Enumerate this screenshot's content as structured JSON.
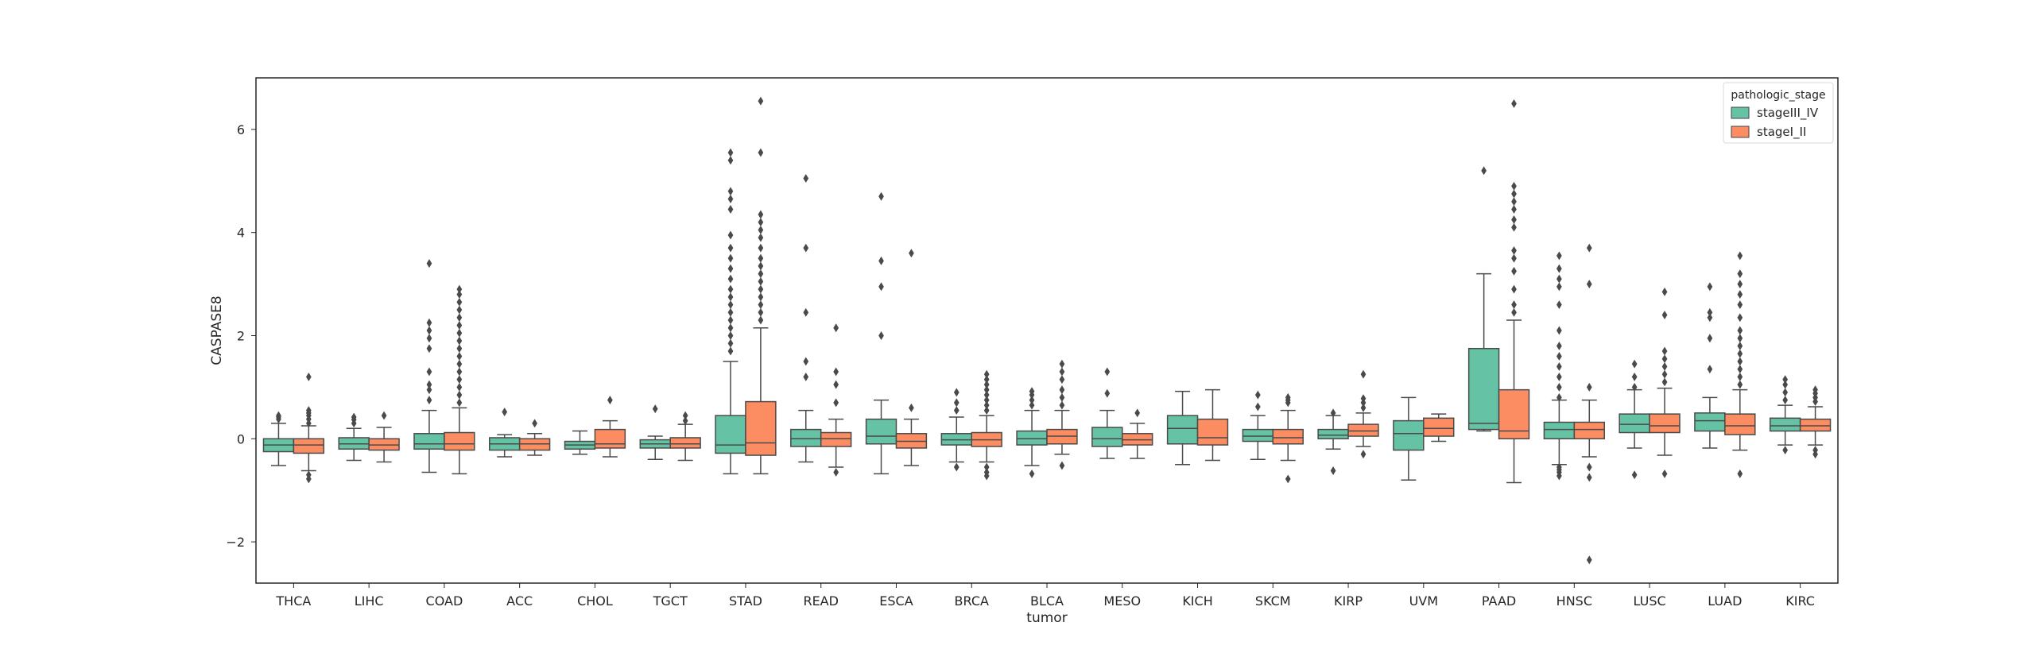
{
  "chart_data": {
    "type": "boxplot",
    "xlabel": "tumor",
    "ylabel": "CASPASE8",
    "ylim": [
      -2.8,
      7.0
    ],
    "yticks": [
      -2,
      0,
      2,
      4,
      6
    ],
    "grid": false,
    "legend": {
      "title": "pathologic_stage",
      "placement": "top-right"
    },
    "categories": [
      "THCA",
      "LIHC",
      "COAD",
      "ACC",
      "CHOL",
      "TGCT",
      "STAD",
      "READ",
      "ESCA",
      "BRCA",
      "BLCA",
      "MESO",
      "KICH",
      "SKCM",
      "KIRP",
      "UVM",
      "PAAD",
      "HNSC",
      "LUSC",
      "LUAD",
      "KIRC"
    ],
    "series": [
      {
        "name": "stageIII_IV",
        "color": "#66c2a5",
        "boxes": [
          {
            "q1": -0.25,
            "median": -0.12,
            "q3": 0.0,
            "wlo": -0.52,
            "whi": 0.3,
            "outliers": [
              0.38,
              0.42,
              0.45
            ]
          },
          {
            "q1": -0.2,
            "median": -0.1,
            "q3": 0.02,
            "wlo": -0.42,
            "whi": 0.2,
            "outliers": [
              0.3,
              0.37,
              0.42
            ]
          },
          {
            "q1": -0.2,
            "median": -0.1,
            "q3": 0.1,
            "wlo": -0.65,
            "whi": 0.55,
            "outliers": [
              0.75,
              0.95,
              1.05,
              1.3,
              1.75,
              1.95,
              2.1,
              2.25,
              3.4
            ]
          },
          {
            "q1": -0.22,
            "median": -0.1,
            "q3": 0.02,
            "wlo": -0.35,
            "whi": 0.08,
            "outliers": [
              0.52
            ]
          },
          {
            "q1": -0.2,
            "median": -0.12,
            "q3": -0.05,
            "wlo": -0.3,
            "whi": 0.15,
            "outliers": []
          },
          {
            "q1": -0.18,
            "median": -0.1,
            "q3": -0.02,
            "wlo": -0.4,
            "whi": 0.05,
            "outliers": [
              0.58
            ]
          },
          {
            "q1": -0.28,
            "median": -0.12,
            "q3": 0.45,
            "wlo": -0.68,
            "whi": 1.5,
            "outliers": [
              1.7,
              1.85,
              2.0,
              2.15,
              2.3,
              2.45,
              2.6,
              2.75,
              2.9,
              3.1,
              3.3,
              3.5,
              3.7,
              3.95,
              4.45,
              4.65,
              4.8,
              5.4,
              5.55
            ]
          },
          {
            "q1": -0.15,
            "median": 0.0,
            "q3": 0.18,
            "wlo": -0.45,
            "whi": 0.55,
            "outliers": [
              1.2,
              1.5,
              2.45,
              3.7,
              5.05
            ]
          },
          {
            "q1": -0.1,
            "median": 0.05,
            "q3": 0.38,
            "wlo": -0.68,
            "whi": 0.75,
            "outliers": [
              2.0,
              2.95,
              3.45,
              4.7
            ]
          },
          {
            "q1": -0.12,
            "median": -0.02,
            "q3": 0.1,
            "wlo": -0.45,
            "whi": 0.42,
            "outliers": [
              -0.55,
              0.55,
              0.7,
              0.9
            ]
          },
          {
            "q1": -0.12,
            "median": 0.0,
            "q3": 0.15,
            "wlo": -0.52,
            "whi": 0.55,
            "outliers": [
              -0.68,
              0.65,
              0.75,
              0.85,
              0.92
            ]
          },
          {
            "q1": -0.15,
            "median": 0.0,
            "q3": 0.22,
            "wlo": -0.38,
            "whi": 0.55,
            "outliers": [
              0.88,
              1.3
            ]
          },
          {
            "q1": -0.1,
            "median": 0.2,
            "q3": 0.45,
            "wlo": -0.5,
            "whi": 0.92,
            "outliers": []
          },
          {
            "q1": -0.05,
            "median": 0.05,
            "q3": 0.18,
            "wlo": -0.4,
            "whi": 0.45,
            "outliers": [
              0.62,
              0.85
            ]
          },
          {
            "q1": 0.0,
            "median": 0.07,
            "q3": 0.18,
            "wlo": -0.2,
            "whi": 0.45,
            "outliers": [
              -0.62,
              0.5
            ]
          },
          {
            "q1": -0.22,
            "median": 0.1,
            "q3": 0.35,
            "wlo": -0.8,
            "whi": 0.8,
            "outliers": []
          },
          {
            "q1": 0.18,
            "median": 0.3,
            "q3": 1.75,
            "wlo": 0.15,
            "whi": 3.2,
            "outliers": [
              5.2
            ]
          },
          {
            "q1": 0.0,
            "median": 0.18,
            "q3": 0.32,
            "wlo": -0.5,
            "whi": 0.75,
            "outliers": [
              -0.55,
              -0.6,
              -0.65,
              -0.72,
              0.8,
              1.0,
              1.2,
              1.4,
              1.6,
              1.8,
              2.1,
              2.6,
              2.95,
              3.1,
              3.3,
              3.55
            ]
          },
          {
            "q1": 0.12,
            "median": 0.28,
            "q3": 0.48,
            "wlo": -0.18,
            "whi": 0.95,
            "outliers": [
              -0.7,
              1.0,
              1.2,
              1.45
            ]
          },
          {
            "q1": 0.15,
            "median": 0.35,
            "q3": 0.5,
            "wlo": -0.18,
            "whi": 0.8,
            "outliers": [
              1.35,
              1.95,
              2.35,
              2.45,
              2.95
            ]
          },
          {
            "q1": 0.15,
            "median": 0.25,
            "q3": 0.4,
            "wlo": -0.12,
            "whi": 0.65,
            "outliers": [
              -0.22,
              0.75,
              0.9,
              1.05,
              1.15
            ]
          }
        ]
      },
      {
        "name": "stageI_II",
        "color": "#fc8d62",
        "boxes": [
          {
            "q1": -0.28,
            "median": -0.12,
            "q3": 0.0,
            "wlo": -0.62,
            "whi": 0.25,
            "outliers": [
              -0.7,
              -0.78,
              0.3,
              0.38,
              0.45,
              0.5,
              0.55,
              1.2
            ]
          },
          {
            "q1": -0.22,
            "median": -0.12,
            "q3": 0.0,
            "wlo": -0.45,
            "whi": 0.22,
            "outliers": [
              0.45
            ]
          },
          {
            "q1": -0.22,
            "median": -0.1,
            "q3": 0.12,
            "wlo": -0.68,
            "whi": 0.6,
            "outliers": [
              0.7,
              0.85,
              1.0,
              1.15,
              1.3,
              1.45,
              1.6,
              1.75,
              1.9,
              2.05,
              2.2,
              2.35,
              2.5,
              2.65,
              2.8,
              2.9
            ]
          },
          {
            "q1": -0.22,
            "median": -0.1,
            "q3": 0.0,
            "wlo": -0.32,
            "whi": 0.1,
            "outliers": [
              0.3
            ]
          },
          {
            "q1": -0.18,
            "median": -0.1,
            "q3": 0.18,
            "wlo": -0.35,
            "whi": 0.35,
            "outliers": [
              0.75
            ]
          },
          {
            "q1": -0.18,
            "median": -0.1,
            "q3": 0.02,
            "wlo": -0.42,
            "whi": 0.28,
            "outliers": [
              0.35,
              0.45
            ]
          },
          {
            "q1": -0.32,
            "median": -0.08,
            "q3": 0.72,
            "wlo": -0.68,
            "whi": 2.15,
            "outliers": [
              2.3,
              2.45,
              2.6,
              2.75,
              2.9,
              3.05,
              3.2,
              3.35,
              3.5,
              3.7,
              3.9,
              4.05,
              4.2,
              4.35,
              5.55,
              6.55
            ]
          },
          {
            "q1": -0.15,
            "median": 0.0,
            "q3": 0.12,
            "wlo": -0.55,
            "whi": 0.38,
            "outliers": [
              -0.65,
              0.7,
              1.05,
              1.3,
              2.15
            ]
          },
          {
            "q1": -0.18,
            "median": -0.05,
            "q3": 0.1,
            "wlo": -0.52,
            "whi": 0.38,
            "outliers": [
              0.6,
              3.6
            ]
          },
          {
            "q1": -0.15,
            "median": -0.02,
            "q3": 0.12,
            "wlo": -0.45,
            "whi": 0.45,
            "outliers": [
              -0.55,
              -0.65,
              -0.72,
              0.55,
              0.65,
              0.75,
              0.85,
              0.95,
              1.05,
              1.15,
              1.25
            ]
          },
          {
            "q1": -0.1,
            "median": 0.05,
            "q3": 0.18,
            "wlo": -0.3,
            "whi": 0.55,
            "outliers": [
              -0.52,
              0.65,
              0.8,
              0.95,
              1.15,
              1.3,
              1.45
            ]
          },
          {
            "q1": -0.12,
            "median": -0.02,
            "q3": 0.1,
            "wlo": -0.38,
            "whi": 0.3,
            "outliers": [
              0.5
            ]
          },
          {
            "q1": -0.12,
            "median": 0.02,
            "q3": 0.38,
            "wlo": -0.42,
            "whi": 0.95,
            "outliers": []
          },
          {
            "q1": -0.1,
            "median": 0.02,
            "q3": 0.18,
            "wlo": -0.42,
            "whi": 0.55,
            "outliers": [
              -0.78,
              0.7,
              0.75,
              0.8
            ]
          },
          {
            "q1": 0.05,
            "median": 0.15,
            "q3": 0.28,
            "wlo": -0.15,
            "whi": 0.5,
            "outliers": [
              -0.3,
              0.6,
              0.7,
              0.78,
              1.25
            ]
          },
          {
            "q1": 0.05,
            "median": 0.2,
            "q3": 0.4,
            "wlo": -0.05,
            "whi": 0.48,
            "outliers": []
          },
          {
            "q1": 0.0,
            "median": 0.15,
            "q3": 0.95,
            "wlo": -0.85,
            "whi": 2.3,
            "outliers": [
              2.45,
              2.6,
              2.9,
              3.25,
              3.5,
              3.65,
              4.1,
              4.25,
              4.45,
              4.6,
              4.75,
              4.9,
              6.5
            ]
          },
          {
            "q1": 0.0,
            "median": 0.18,
            "q3": 0.32,
            "wlo": -0.35,
            "whi": 0.75,
            "outliers": [
              -0.55,
              -0.75,
              1.0,
              3.0,
              3.7,
              -2.35
            ]
          },
          {
            "q1": 0.12,
            "median": 0.25,
            "q3": 0.48,
            "wlo": -0.32,
            "whi": 0.98,
            "outliers": [
              -0.68,
              1.1,
              1.25,
              1.4,
              1.55,
              1.7,
              2.4,
              2.85
            ]
          },
          {
            "q1": 0.08,
            "median": 0.25,
            "q3": 0.48,
            "wlo": -0.22,
            "whi": 0.95,
            "outliers": [
              -0.68,
              1.05,
              1.2,
              1.35,
              1.5,
              1.65,
              1.8,
              1.95,
              2.1,
              2.35,
              2.6,
              2.8,
              3.0,
              3.2,
              3.55
            ]
          },
          {
            "q1": 0.15,
            "median": 0.25,
            "q3": 0.38,
            "wlo": -0.12,
            "whi": 0.62,
            "outliers": [
              -0.22,
              -0.3,
              0.72,
              0.8,
              0.88,
              0.95
            ]
          }
        ]
      }
    ]
  }
}
